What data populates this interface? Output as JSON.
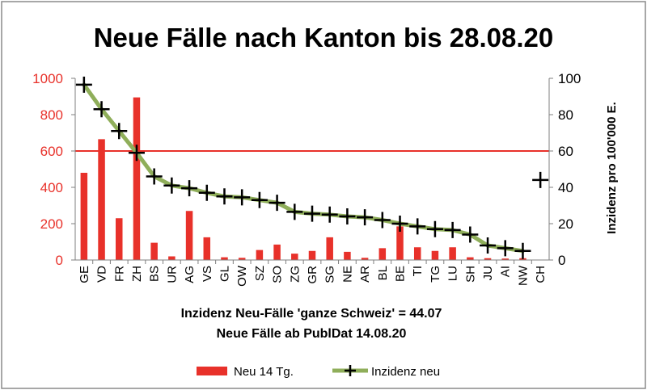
{
  "chart_data": {
    "type": "bar",
    "title": "Neue Fälle nach Kanton bis 28.08.20",
    "categories": [
      "GE",
      "VD",
      "FR",
      "ZH",
      "BS",
      "UR",
      "AG",
      "VS",
      "GL",
      "OW",
      "SZ",
      "SO",
      "ZG",
      "GR",
      "SG",
      "NE",
      "AR",
      "BL",
      "BE",
      "TI",
      "TG",
      "LU",
      "SH",
      "JU",
      "AI",
      "NW",
      "CH"
    ],
    "series": [
      {
        "name": "Neu 14 Tg.",
        "axis": "left",
        "color": "#e8312a",
        "values": [
          480,
          665,
          230,
          895,
          95,
          20,
          270,
          125,
          15,
          12,
          55,
          85,
          35,
          50,
          125,
          45,
          12,
          65,
          185,
          70,
          50,
          70,
          15,
          10,
          8,
          10,
          null
        ]
      },
      {
        "name": "Inzidenz neu",
        "axis": "right",
        "color": "#8fae5a",
        "marker_color": "#000000",
        "values": [
          96.5,
          83,
          71,
          59,
          46,
          41,
          39.5,
          37,
          35,
          34.5,
          33,
          31.5,
          26.5,
          25.5,
          25,
          24,
          23.5,
          22,
          20,
          18.5,
          17,
          16.5,
          14,
          8,
          6.5,
          5,
          44.07
        ]
      }
    ],
    "y_left": {
      "min": 0,
      "max": 1000,
      "ticks": [
        0,
        200,
        400,
        600,
        800,
        1000
      ],
      "tick_color": "#e8312a"
    },
    "y_right": {
      "min": 0,
      "max": 100,
      "ticks": [
        0,
        20,
        40,
        60,
        80,
        100
      ],
      "label": "Inzidenz pro 100'000 E."
    },
    "reference_line": {
      "axis": "left",
      "value": 600,
      "color": "#e8312a"
    },
    "annotations": [
      "Inzidenz Neu-Fälle 'ganze Schweiz' = 44.07",
      "Neue Fälle ab PublDat 14.08.20"
    ],
    "legend": {
      "position": "bottom"
    }
  }
}
